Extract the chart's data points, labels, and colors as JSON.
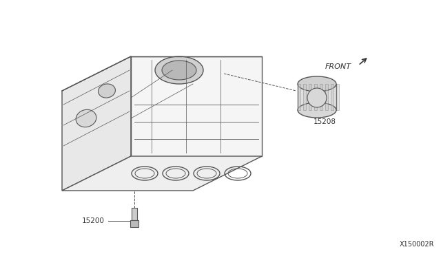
{
  "bg_color": "#ffffff",
  "line_color": "#555555",
  "text_color": "#333333",
  "diagram_number": "X150002R",
  "label_15200": "15200",
  "label_15208": "15208",
  "front_label": "FRONT",
  "fig_width": 6.4,
  "fig_height": 3.72,
  "dpi": 100
}
